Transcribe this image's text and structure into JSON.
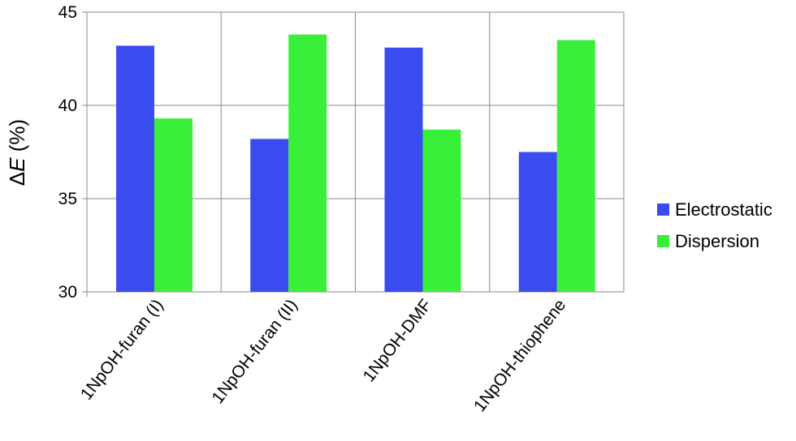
{
  "chart_data": {
    "type": "bar",
    "categories": [
      "1NpOH-furan (I)",
      "1NpOH-furan (II)",
      "1NpOH-DMF",
      "1NpOH-thiophene"
    ],
    "series": [
      {
        "name": "Electrostatic",
        "values": [
          43.2,
          38.2,
          43.1,
          37.5
        ],
        "color": "#3a4cf0"
      },
      {
        "name": "Dispersion",
        "values": [
          39.3,
          43.8,
          38.7,
          43.5
        ],
        "color": "#39ef3a"
      }
    ],
    "ylabel": {
      "symbol": "Δ",
      "var": "E",
      "unit": " (%)"
    },
    "ylim": [
      30,
      45
    ],
    "yticks": [
      "30",
      "35",
      "40",
      "45"
    ],
    "grid": true,
    "legend_position": "right"
  }
}
